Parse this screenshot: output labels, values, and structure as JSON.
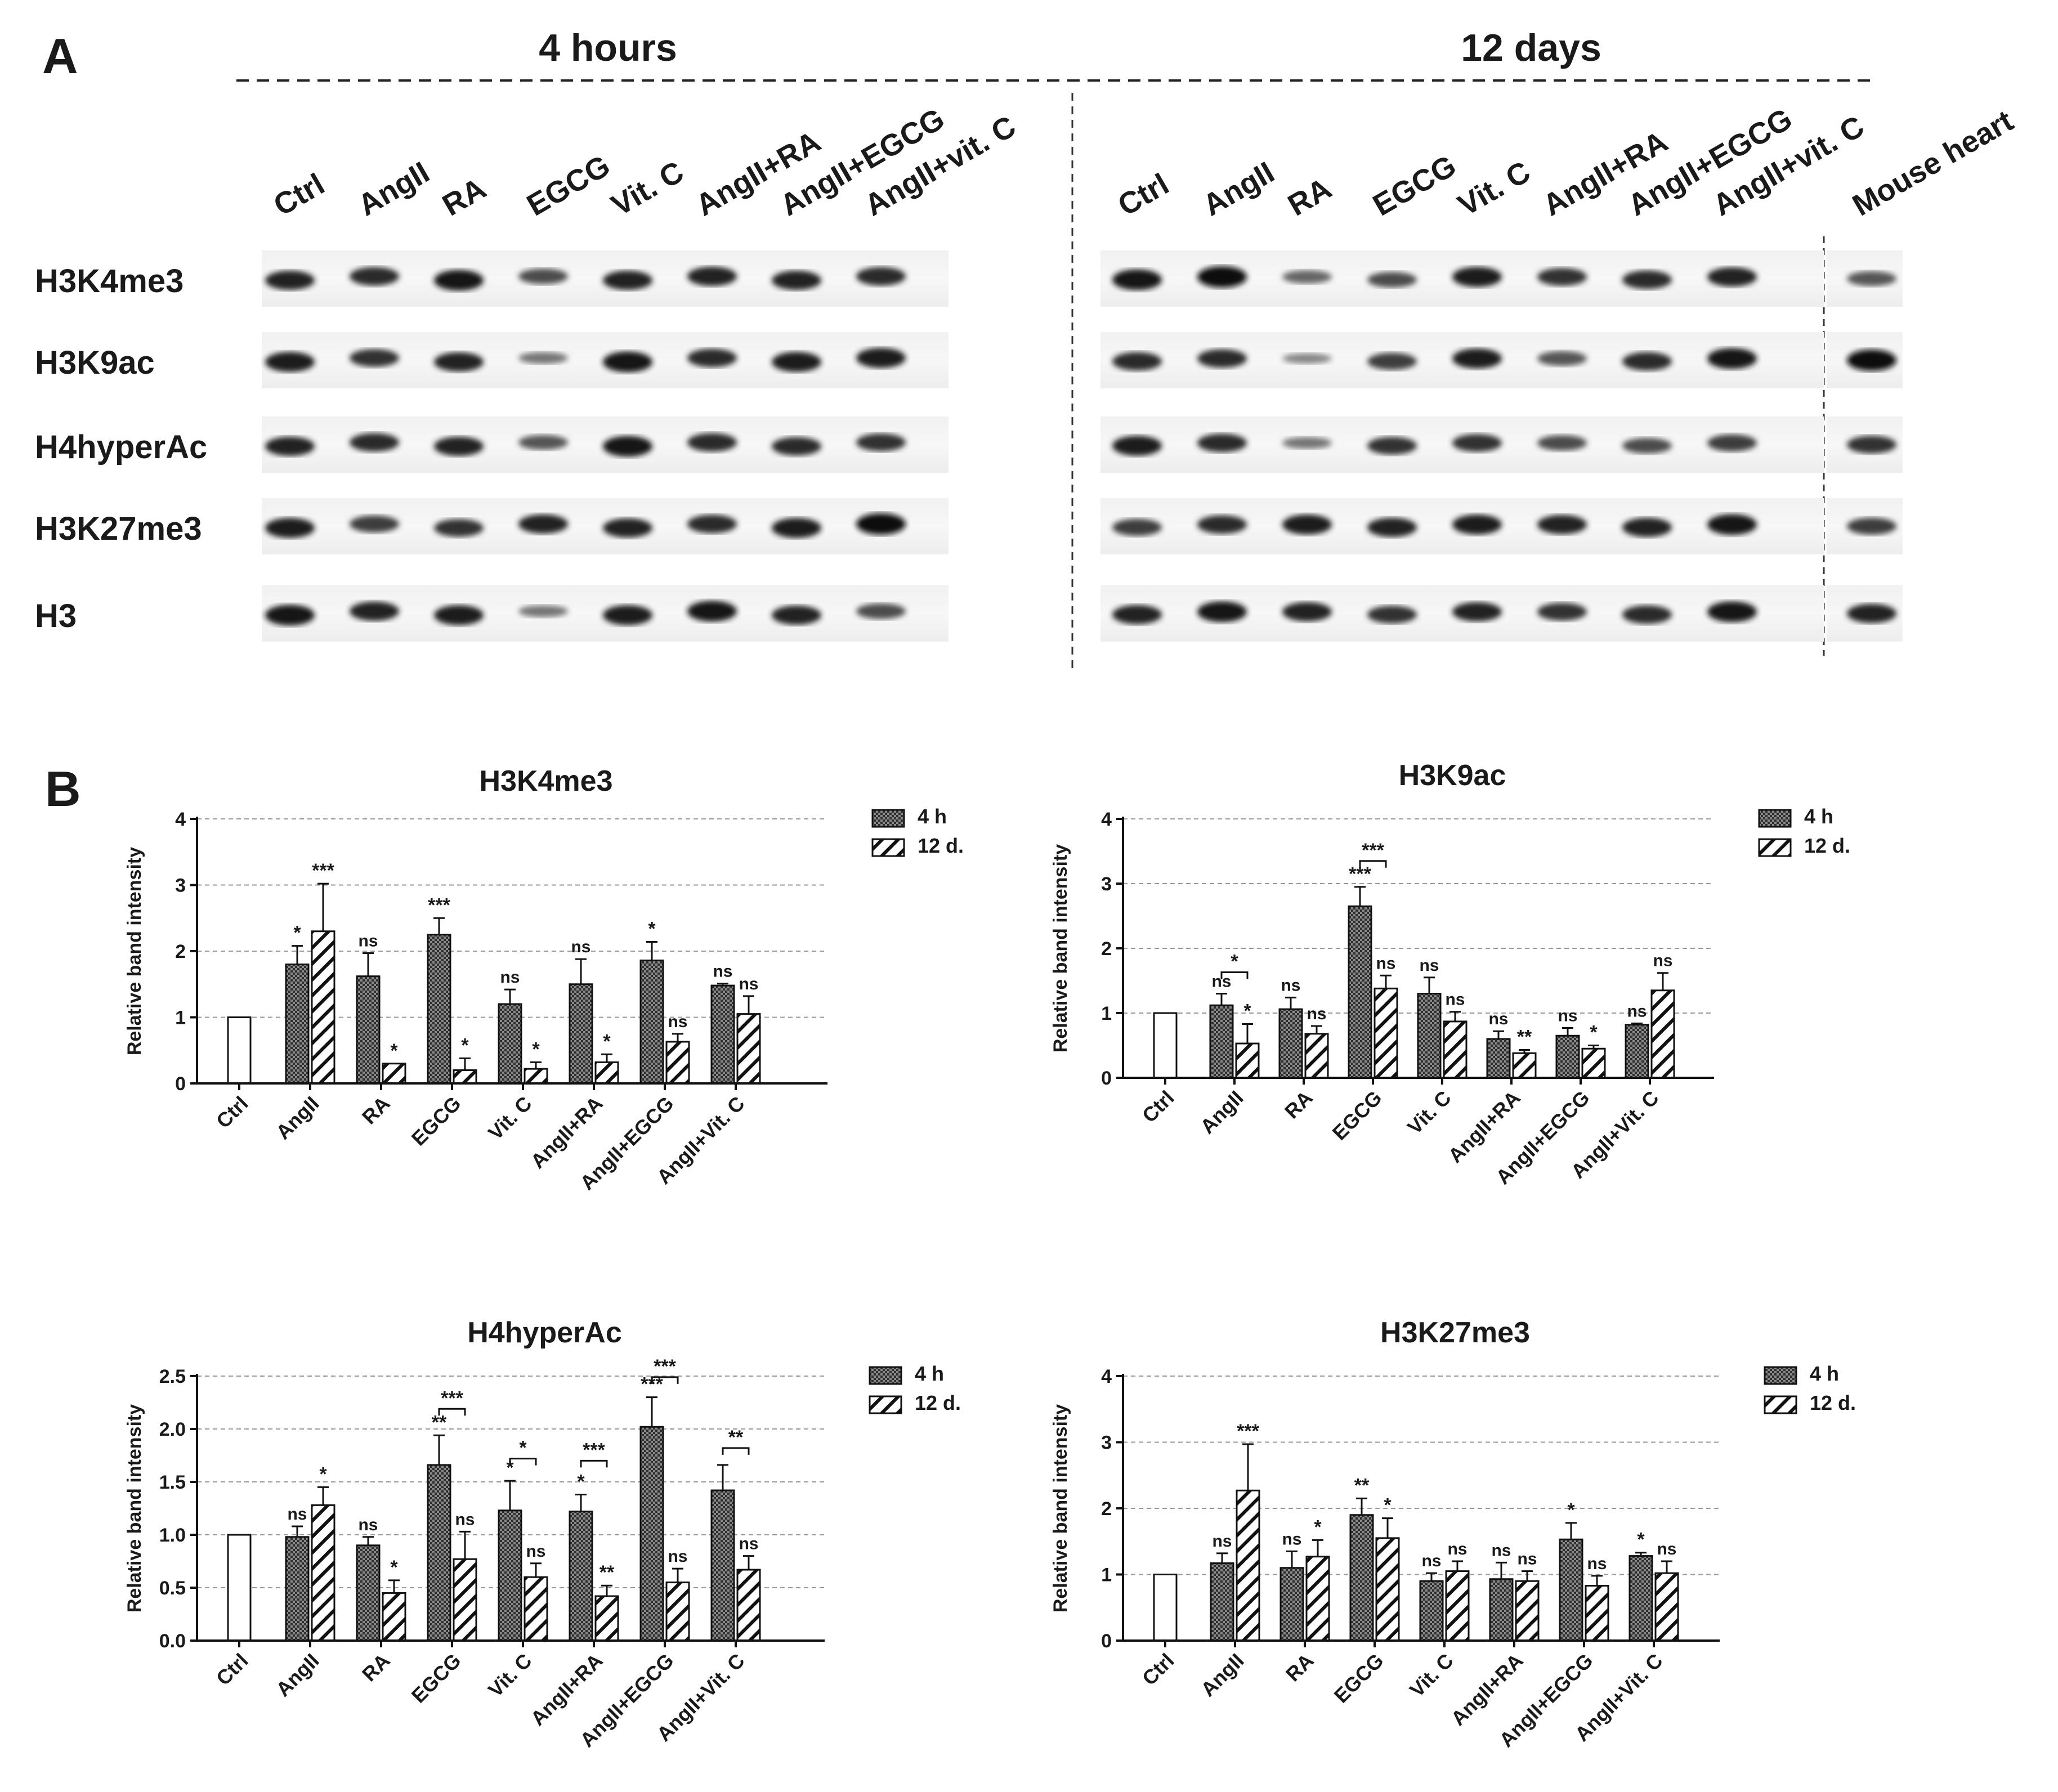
{
  "panel_a": {
    "letter": "A",
    "time_labels": [
      "4 hours",
      "12 days"
    ],
    "lanes_4h": [
      "Ctrl",
      "AngII",
      "RA",
      "EGCG",
      "Vit. C",
      "AngII+RA",
      "AngII+EGCG",
      "AngII+vit. C"
    ],
    "lanes_12d": [
      "Ctrl",
      "AngII",
      "RA",
      "EGCG",
      "Vit. C",
      "AngII+RA",
      "AngII+EGCG",
      "AngII+vit. C"
    ],
    "extra_lane": "Mouse heart",
    "rows": [
      "H3K4me3",
      "H3K9ac",
      "H4hyperAc",
      "H3K27me3",
      "H3"
    ],
    "band_intensity_4h": [
      [
        0.85,
        0.8,
        0.95,
        0.6,
        0.85,
        0.85,
        0.85,
        0.8
      ],
      [
        0.9,
        0.75,
        0.85,
        0.35,
        0.95,
        0.8,
        0.9,
        0.9
      ],
      [
        0.85,
        0.8,
        0.85,
        0.55,
        0.95,
        0.8,
        0.8,
        0.75
      ],
      [
        0.9,
        0.7,
        0.75,
        0.85,
        0.85,
        0.8,
        0.9,
        1.0
      ],
      [
        0.95,
        0.85,
        0.9,
        0.35,
        0.9,
        0.95,
        0.85,
        0.6
      ]
    ],
    "band_intensity_12d": [
      [
        0.95,
        1.0,
        0.45,
        0.6,
        0.9,
        0.75,
        0.8,
        0.85
      ],
      [
        0.8,
        0.8,
        0.25,
        0.7,
        0.9,
        0.55,
        0.8,
        0.95
      ],
      [
        0.9,
        0.8,
        0.35,
        0.75,
        0.75,
        0.6,
        0.6,
        0.7
      ],
      [
        0.7,
        0.8,
        0.9,
        0.85,
        0.9,
        0.85,
        0.85,
        0.95
      ],
      [
        0.85,
        0.95,
        0.85,
        0.75,
        0.85,
        0.75,
        0.8,
        0.95
      ]
    ],
    "band_intensity_heart": [
      0.55,
      1.0,
      0.75,
      0.7,
      0.85
    ]
  },
  "panel_b": {
    "letter": "B"
  },
  "chart_data": [
    {
      "type": "bar",
      "title": "H3K4me3",
      "ylabel": "Relative band intensity",
      "xlabel": "",
      "ylim": [
        0,
        4
      ],
      "yticks": [
        "0",
        "1",
        "2",
        "3",
        "4"
      ],
      "categories": [
        "Ctrl",
        "AngII",
        "RA",
        "EGCG",
        "Vit. C",
        "AngII+RA",
        "AngII+EGCG",
        "AngII+Vit. C"
      ],
      "legend": [
        "4 h",
        "12 d."
      ],
      "control": 1.0,
      "series": [
        {
          "name": "4 h",
          "values": [
            null,
            1.8,
            1.62,
            2.25,
            1.2,
            1.5,
            1.86,
            1.48
          ],
          "errors": [
            null,
            0.28,
            0.35,
            0.25,
            0.22,
            0.38,
            0.28,
            0.03
          ],
          "marks": [
            null,
            "*",
            "ns",
            "***",
            "ns",
            "ns",
            "*",
            "ns"
          ]
        },
        {
          "name": "12 d.",
          "values": [
            null,
            2.3,
            0.3,
            0.2,
            0.22,
            0.32,
            0.63,
            1.05
          ],
          "errors": [
            null,
            0.72,
            0.0,
            0.18,
            0.1,
            0.12,
            0.12,
            0.27
          ],
          "marks": [
            null,
            "***",
            "*",
            "*",
            "*",
            "*",
            "ns",
            "ns"
          ]
        }
      ],
      "brackets": []
    },
    {
      "type": "bar",
      "title": "H3K9ac",
      "ylabel": "Relative band intensity",
      "xlabel": "",
      "ylim": [
        0,
        4
      ],
      "yticks": [
        "0",
        "1",
        "2",
        "3",
        "4"
      ],
      "categories": [
        "Ctrl",
        "AngII",
        "RA",
        "EGCG",
        "Vit. C",
        "AngII+RA",
        "AngII+EGCG",
        "AngII+Vit. C"
      ],
      "legend": [
        "4 h",
        "12 d."
      ],
      "control": 1.0,
      "series": [
        {
          "name": "4 h",
          "values": [
            null,
            1.12,
            1.06,
            2.65,
            1.3,
            0.6,
            0.65,
            0.82
          ],
          "errors": [
            null,
            0.18,
            0.18,
            0.3,
            0.25,
            0.12,
            0.12,
            0.02
          ],
          "marks": [
            null,
            "ns",
            "ns",
            "***",
            "ns",
            "ns",
            "ns",
            "ns"
          ]
        },
        {
          "name": "12 d.",
          "values": [
            null,
            0.53,
            0.68,
            1.38,
            0.87,
            0.38,
            0.45,
            1.35
          ],
          "errors": [
            null,
            0.3,
            0.12,
            0.2,
            0.15,
            0.05,
            0.05,
            0.27
          ],
          "marks": [
            null,
            "*",
            "ns",
            "ns",
            "ns",
            "**",
            "*",
            "ns"
          ]
        }
      ],
      "brackets": [
        {
          "category": 1,
          "label": "*",
          "value": 1.63
        },
        {
          "category": 3,
          "label": "***",
          "value": 3.35
        }
      ]
    },
    {
      "type": "bar",
      "title": "H4hyperAc",
      "ylabel": "Relative band intensity",
      "xlabel": "",
      "ylim": [
        0,
        2.5
      ],
      "yticks": [
        "0.0",
        "0.5",
        "1.0",
        "1.5",
        "2.0",
        "2.5"
      ],
      "categories": [
        "Ctrl",
        "AngII",
        "RA",
        "EGCG",
        "Vit. C",
        "AngII+RA",
        "AngII+EGCG",
        "AngII+Vit. C"
      ],
      "legend": [
        "4 h",
        "12 d."
      ],
      "control": 1.0,
      "series": [
        {
          "name": "4 h",
          "values": [
            null,
            0.98,
            0.9,
            1.66,
            1.23,
            1.22,
            2.02,
            1.42
          ],
          "errors": [
            null,
            0.1,
            0.08,
            0.28,
            0.28,
            0.16,
            0.28,
            0.24
          ],
          "marks": [
            null,
            "ns",
            "ns",
            "**",
            "*",
            "*",
            "***",
            ""
          ]
        },
        {
          "name": "12 d.",
          "values": [
            null,
            1.28,
            0.45,
            0.77,
            0.6,
            0.42,
            0.55,
            0.67
          ],
          "errors": [
            null,
            0.17,
            0.12,
            0.26,
            0.13,
            0.1,
            0.13,
            0.13
          ],
          "marks": [
            null,
            "*",
            "*",
            "ns",
            "ns",
            "**",
            "ns",
            "ns"
          ]
        }
      ],
      "brackets": [
        {
          "category": 3,
          "label": "***",
          "value": 2.19
        },
        {
          "category": 4,
          "label": "*",
          "value": 1.72
        },
        {
          "category": 5,
          "label": "***",
          "value": 1.7
        },
        {
          "category": 6,
          "label": "***",
          "value": 2.49
        },
        {
          "category": 7,
          "label": "**",
          "value": 1.82
        }
      ]
    },
    {
      "type": "bar",
      "title": "H3K27me3",
      "ylabel": "Relative band intensity",
      "xlabel": "",
      "ylim": [
        0,
        4
      ],
      "yticks": [
        "0",
        "1",
        "2",
        "3",
        "4"
      ],
      "categories": [
        "Ctrl",
        "AngII",
        "RA",
        "EGCG",
        "Vit. C",
        "AngII+RA",
        "AngII+EGCG",
        "AngII+Vit. C"
      ],
      "legend": [
        "4 h",
        "12 d."
      ],
      "control": 1.0,
      "series": [
        {
          "name": "4 h",
          "values": [
            null,
            1.17,
            1.1,
            1.9,
            0.9,
            0.93,
            1.53,
            1.28
          ],
          "errors": [
            null,
            0.15,
            0.25,
            0.25,
            0.12,
            0.25,
            0.25,
            0.05
          ],
          "marks": [
            null,
            "ns",
            "ns",
            "**",
            "ns",
            "ns",
            "*",
            "*"
          ]
        },
        {
          "name": "12 d.",
          "values": [
            null,
            2.27,
            1.27,
            1.55,
            1.05,
            0.9,
            0.83,
            1.02
          ],
          "errors": [
            null,
            0.7,
            0.25,
            0.3,
            0.15,
            0.15,
            0.15,
            0.18
          ],
          "marks": [
            null,
            "***",
            "*",
            "*",
            "ns",
            "ns",
            "ns",
            "ns"
          ]
        }
      ],
      "brackets": []
    }
  ]
}
